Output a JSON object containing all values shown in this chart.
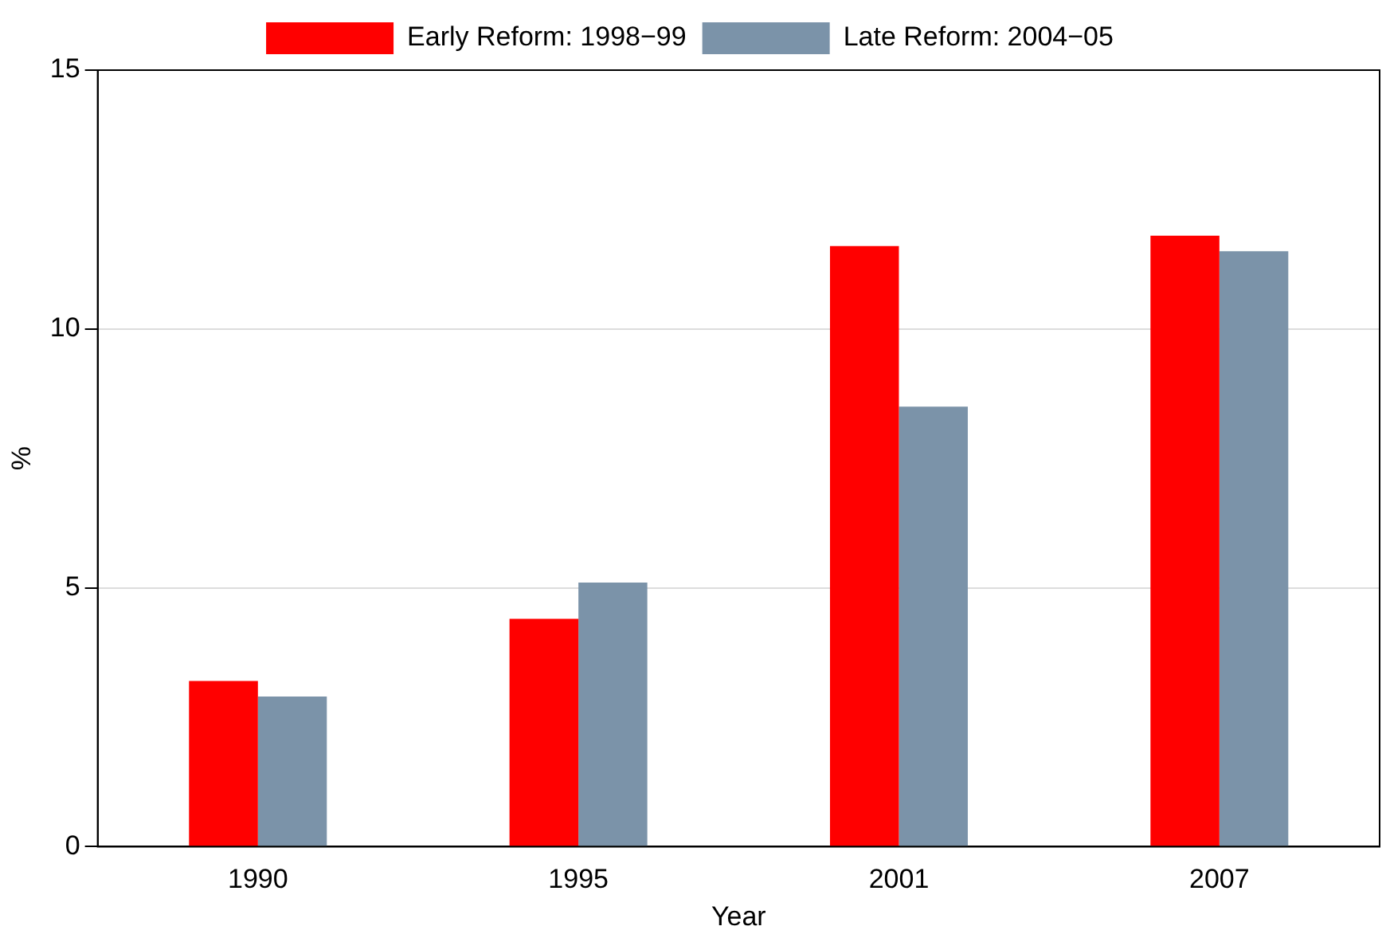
{
  "chart_data": {
    "type": "bar",
    "xlabel": "Year",
    "ylabel": "%",
    "categories": [
      "1990",
      "1995",
      "2001",
      "2007"
    ],
    "series": [
      {
        "name": "Early Reform: 1998−99",
        "color": "#ff0000",
        "values": [
          3.2,
          4.4,
          11.6,
          11.8
        ]
      },
      {
        "name": "Late Reform: 2004−05",
        "color": "#7b93a9",
        "values": [
          2.9,
          5.1,
          8.5,
          11.5
        ]
      }
    ],
    "ylim": [
      0,
      15
    ],
    "yticks": [
      0,
      5,
      10,
      15
    ],
    "grid": "y",
    "legend": "top"
  }
}
